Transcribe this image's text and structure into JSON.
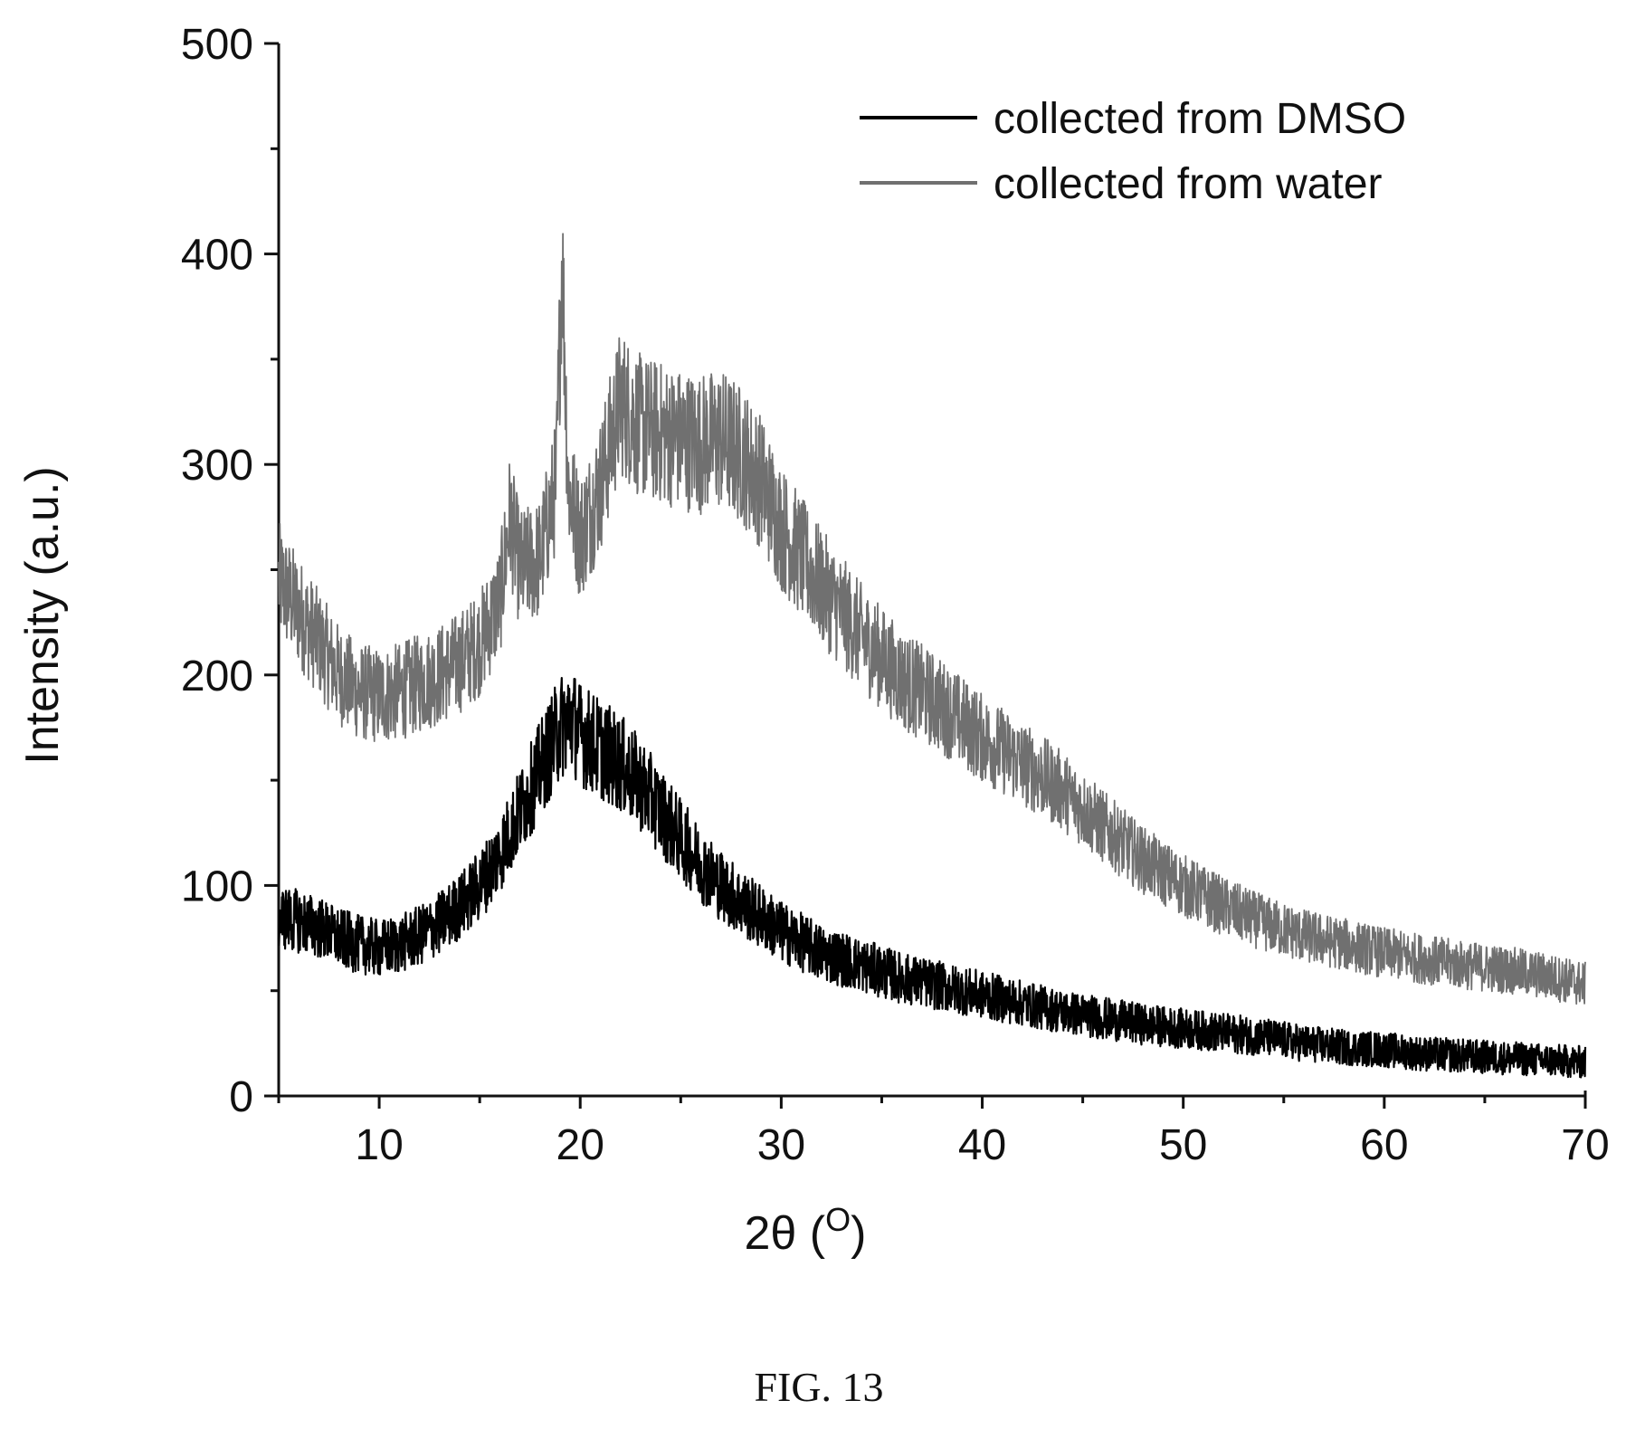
{
  "chart_data": {
    "type": "line",
    "xlabel": "2θ (",
    "xlabel_unit": "O",
    "xlabel_close": ")",
    "ylabel": "Intensity (a.u.)",
    "xlim": [
      5,
      70
    ],
    "ylim": [
      0,
      500
    ],
    "xticks": [
      10,
      20,
      30,
      40,
      50,
      60,
      70
    ],
    "yticks": [
      0,
      100,
      200,
      300,
      400,
      500
    ],
    "grid": false,
    "legend_position": "top-right",
    "caption": "FIG. 13",
    "series": [
      {
        "name": "collected from DMSO",
        "color": "#000000",
        "x": [
          5,
          6,
          7,
          8,
          9,
          10,
          11,
          12,
          13,
          14,
          15,
          16,
          17,
          18,
          19,
          19.5,
          20,
          21,
          22,
          23,
          24,
          25,
          26,
          27,
          28,
          29,
          30,
          32,
          34,
          36,
          38,
          40,
          42,
          44,
          46,
          48,
          50,
          52,
          54,
          56,
          58,
          60,
          62,
          64,
          66,
          68,
          70
        ],
        "y": [
          85,
          83,
          80,
          75,
          72,
          70,
          72,
          76,
          82,
          90,
          100,
          115,
          135,
          155,
          175,
          180,
          172,
          165,
          158,
          148,
          135,
          122,
          110,
          100,
          92,
          85,
          78,
          68,
          62,
          56,
          52,
          48,
          44,
          40,
          37,
          34,
          32,
          30,
          28,
          25,
          23,
          22,
          20,
          19,
          18,
          17,
          16
        ]
      },
      {
        "name": "collected from water",
        "color": "#707070",
        "x": [
          5,
          6,
          7,
          8,
          9,
          10,
          11,
          12,
          13,
          14,
          15,
          16,
          16.5,
          17,
          18,
          18.8,
          19.1,
          19.4,
          20,
          21,
          22,
          23,
          24,
          25,
          26,
          27,
          28,
          29,
          30,
          32,
          34,
          36,
          38,
          40,
          42,
          44,
          46,
          48,
          50,
          52,
          54,
          56,
          58,
          60,
          62,
          64,
          66,
          68,
          70
        ],
        "y": [
          245,
          230,
          215,
          200,
          192,
          190,
          192,
          196,
          200,
          206,
          215,
          235,
          275,
          250,
          255,
          290,
          400,
          290,
          265,
          290,
          330,
          318,
          315,
          312,
          310,
          312,
          305,
          292,
          270,
          242,
          218,
          198,
          185,
          170,
          158,
          145,
          128,
          112,
          100,
          90,
          82,
          76,
          72,
          68,
          65,
          62,
          60,
          57,
          53
        ]
      }
    ]
  }
}
